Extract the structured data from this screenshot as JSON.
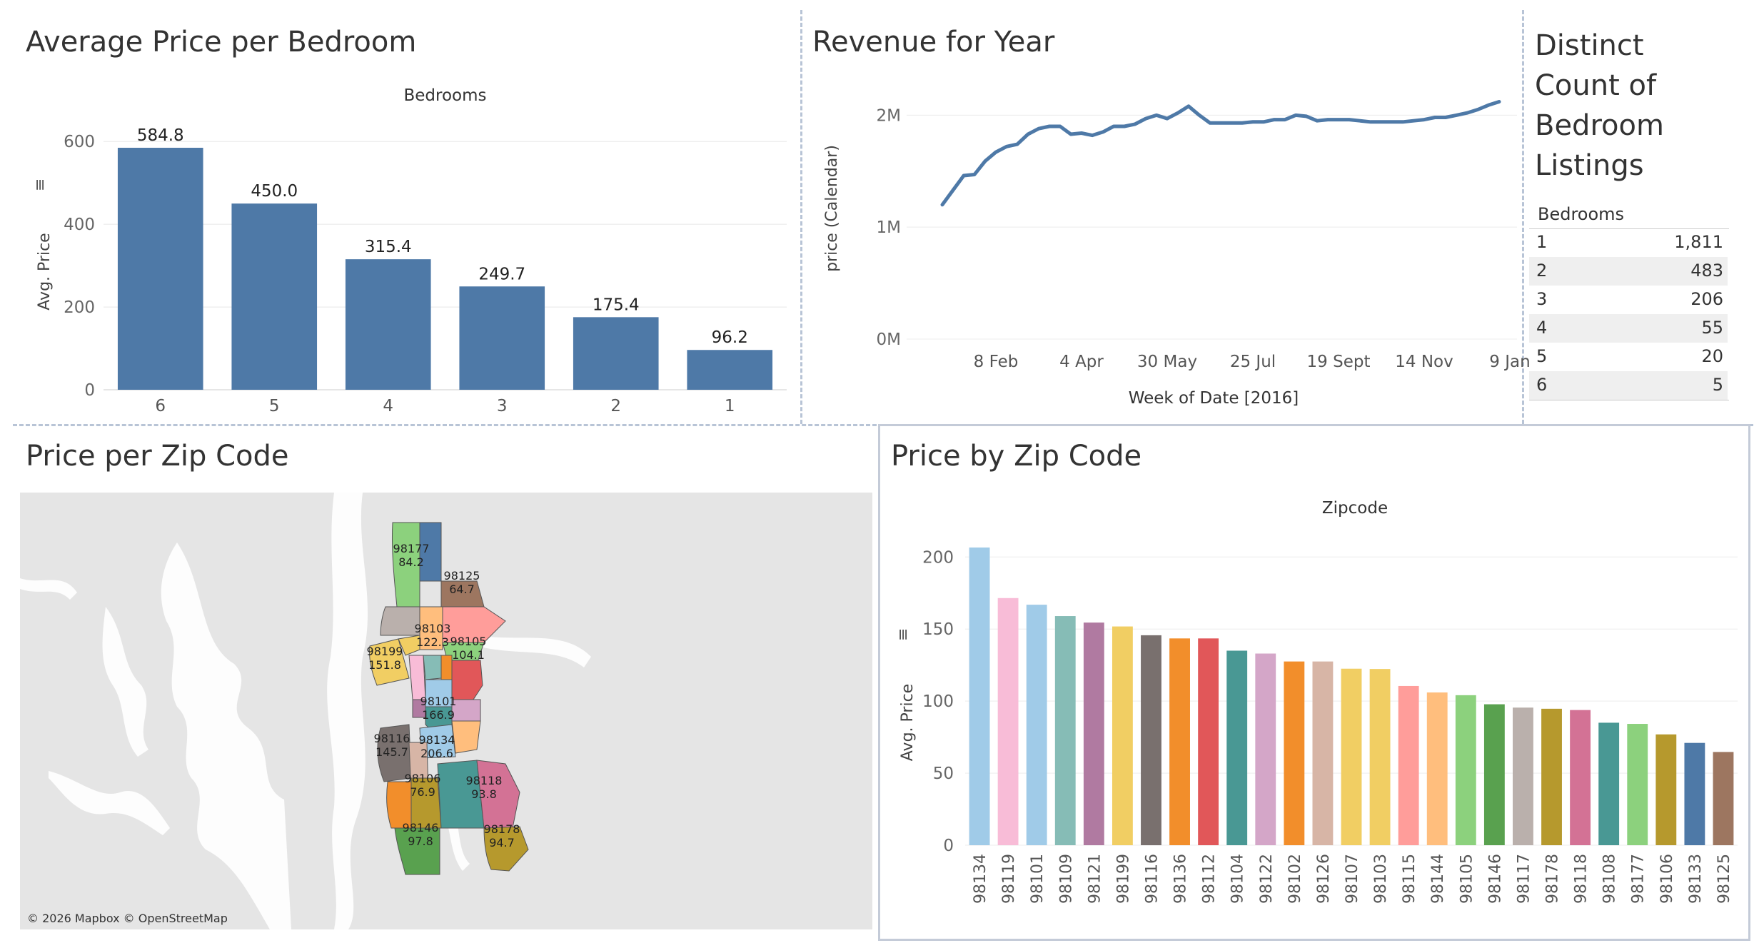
{
  "panels": {
    "bedroom_title": "Average Price per Bedroom",
    "revenue_title": "Revenue for Year",
    "count_title_lines": [
      "Distinct",
      "Count of",
      "Bedroom",
      "Listings"
    ],
    "map_title": "Price per Zip Code",
    "zip_title": "Price by Zip Code"
  },
  "count_table": {
    "header": "Bedrooms",
    "rows": [
      {
        "bedrooms": "1",
        "count": "1,811"
      },
      {
        "bedrooms": "2",
        "count": "483"
      },
      {
        "bedrooms": "3",
        "count": "206"
      },
      {
        "bedrooms": "4",
        "count": "55"
      },
      {
        "bedrooms": "5",
        "count": "20"
      },
      {
        "bedrooms": "6",
        "count": "5"
      }
    ]
  },
  "map": {
    "attribution": "© 2026 Mapbox © OpenStreetMap",
    "labels": [
      {
        "zip": "98177",
        "value": "84.2"
      },
      {
        "zip": "98125",
        "value": "64.7"
      },
      {
        "zip": "98103",
        "value": "122.3"
      },
      {
        "zip": "98105",
        "value": "104.1"
      },
      {
        "zip": "98199",
        "value": "151.8"
      },
      {
        "zip": "98101",
        "value": "166.9"
      },
      {
        "zip": "98116",
        "value": "145.7"
      },
      {
        "zip": "98134",
        "value": "206.6"
      },
      {
        "zip": "98106",
        "value": "76.9"
      },
      {
        "zip": "98118",
        "value": "93.8"
      },
      {
        "zip": "98146",
        "value": "97.8"
      },
      {
        "zip": "98178",
        "value": "94.7"
      }
    ]
  },
  "chart_data": [
    {
      "type": "bar",
      "title": "Average Price per Bedroom",
      "header": "Bedrooms",
      "ylabel": "Avg. Price",
      "categories": [
        "6",
        "5",
        "4",
        "3",
        "2",
        "1"
      ],
      "values": [
        584.8,
        450.0,
        315.4,
        249.7,
        175.4,
        96.2
      ],
      "value_labels": [
        "584.8",
        "450.0",
        "315.4",
        "249.7",
        "175.4",
        "96.2"
      ],
      "yticks": [
        "0",
        "200",
        "400",
        "600"
      ],
      "ylim": [
        0,
        640
      ],
      "color": "#4e79a7",
      "grid": true
    },
    {
      "type": "line",
      "title": "Revenue for Year",
      "xlabel": "Week of Date [2016]",
      "ylabel": "price (Calendar)",
      "x_ticks": [
        "8 Feb",
        "4 Apr",
        "30 May",
        "25 Jul",
        "19 Sept",
        "14 Nov",
        "9 Jan"
      ],
      "y_ticks": [
        "0M",
        "1M",
        "2M"
      ],
      "ylim": [
        0,
        2200000
      ],
      "series": [
        {
          "color": "#4e79a7",
          "x": [
            "2016-01-04",
            "2016-01-11",
            "2016-01-18",
            "2016-01-25",
            "2016-02-01",
            "2016-02-08",
            "2016-02-15",
            "2016-02-22",
            "2016-02-29",
            "2016-03-07",
            "2016-03-14",
            "2016-03-21",
            "2016-03-28",
            "2016-04-04",
            "2016-04-11",
            "2016-04-18",
            "2016-04-25",
            "2016-05-02",
            "2016-05-09",
            "2016-05-16",
            "2016-05-23",
            "2016-05-30",
            "2016-06-06",
            "2016-06-13",
            "2016-06-20",
            "2016-06-27",
            "2016-07-04",
            "2016-07-11",
            "2016-07-18",
            "2016-07-25",
            "2016-08-01",
            "2016-08-08",
            "2016-08-15",
            "2016-08-22",
            "2016-08-29",
            "2016-09-05",
            "2016-09-12",
            "2016-09-19",
            "2016-09-26",
            "2016-10-03",
            "2016-10-10",
            "2016-10-17",
            "2016-10-24",
            "2016-10-31",
            "2016-11-07",
            "2016-11-14",
            "2016-11-21",
            "2016-11-28",
            "2016-12-05",
            "2016-12-12",
            "2016-12-19",
            "2016-12-26",
            "2017-01-02"
          ],
          "values": [
            1200000,
            1330000,
            1460000,
            1470000,
            1590000,
            1670000,
            1720000,
            1740000,
            1830000,
            1880000,
            1900000,
            1900000,
            1830000,
            1840000,
            1820000,
            1850000,
            1900000,
            1900000,
            1920000,
            1970000,
            2000000,
            1970000,
            2020000,
            2080000,
            2000000,
            1930000,
            1930000,
            1930000,
            1930000,
            1940000,
            1940000,
            1960000,
            1960000,
            2000000,
            1990000,
            1950000,
            1960000,
            1960000,
            1960000,
            1950000,
            1940000,
            1940000,
            1940000,
            1940000,
            1950000,
            1960000,
            1980000,
            1980000,
            2000000,
            2020000,
            2050000,
            2090000,
            2120000
          ]
        }
      ]
    },
    {
      "type": "bar",
      "title": "Price by Zip Code",
      "header": "Zipcode",
      "ylabel": "Avg. Price",
      "categories": [
        "98134",
        "98119",
        "98101",
        "98109",
        "98121",
        "98199",
        "98116",
        "98136",
        "98112",
        "98104",
        "98122",
        "98102",
        "98126",
        "98107",
        "98103",
        "98115",
        "98144",
        "98105",
        "98146",
        "98117",
        "98178",
        "98118",
        "98108",
        "98177",
        "98106",
        "98133",
        "98125"
      ],
      "values": [
        206.6,
        171.5,
        166.9,
        159.0,
        154.5,
        151.8,
        145.7,
        143.5,
        143.5,
        135.0,
        133.0,
        127.5,
        127.5,
        122.5,
        122.3,
        110.5,
        106.0,
        104.1,
        97.8,
        95.5,
        94.7,
        93.8,
        85.0,
        84.2,
        76.9,
        71.0,
        64.7
      ],
      "colors": [
        "#a0cbe8",
        "#f8bcd7",
        "#a0cbe8",
        "#86bcb6",
        "#b07aa1",
        "#f1ce63",
        "#79706e",
        "#f28e2b",
        "#e15759",
        "#499894",
        "#d4a6c8",
        "#f28e2b",
        "#d7b5a6",
        "#f1ce63",
        "#f1ce63",
        "#ff9d9a",
        "#ffbe7d",
        "#8cd17d",
        "#59a14f",
        "#bab0ac",
        "#b6992d",
        "#d37295",
        "#499894",
        "#8cd17d",
        "#b6992d",
        "#4e79a7",
        "#9d7660"
      ],
      "yticks": [
        "0",
        "50",
        "100",
        "150",
        "200"
      ],
      "ylim": [
        0,
        215
      ],
      "grid": true
    }
  ]
}
